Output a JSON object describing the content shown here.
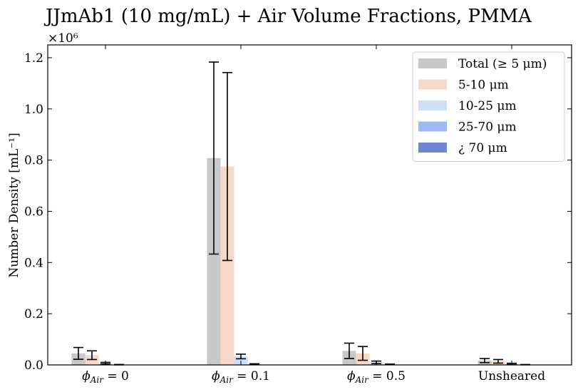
{
  "chart_data": {
    "type": "bar",
    "title": "JJmAb1 (10 mg/mL) + Air Volume Fractions, PMMA",
    "ylabel": "Number Density [mL⁻¹]",
    "y_multiplier_label": "×10⁶",
    "y_multiplier": 1000000,
    "ylim": [
      0,
      1250000
    ],
    "yticks": [
      0,
      200000,
      400000,
      600000,
      800000,
      1000000,
      1200000
    ],
    "ytick_labels": [
      "0.0",
      "0.2",
      "0.4",
      "0.6",
      "0.8",
      "1.0",
      "1.2"
    ],
    "categories": [
      "ϕAir = 0",
      "ϕAir = 0.1",
      "ϕAir = 0.5",
      "Unsheared"
    ],
    "category_labels": [
      {
        "sym": "ϕ",
        "sub": "Air",
        "rest": " = 0"
      },
      {
        "sym": "ϕ",
        "sub": "Air",
        "rest": " = 0.1"
      },
      {
        "sym": "ϕ",
        "sub": "Air",
        "rest": " = 0.5"
      },
      {
        "sym": "",
        "sub": "",
        "rest": "Unsheared"
      }
    ],
    "series": [
      {
        "name": "Total (≥ 5 μm)",
        "color": "#c8c8c8",
        "values": [
          45000,
          808000,
          55000,
          17000
        ],
        "errors": [
          23000,
          375000,
          30000,
          8000
        ]
      },
      {
        "name": "5-10 μm",
        "color": "#f6d8c8",
        "values": [
          38000,
          775000,
          45000,
          14000
        ],
        "errors": [
          17000,
          367000,
          27000,
          7000
        ]
      },
      {
        "name": "10-25 μm",
        "color": "#cfdef4",
        "values": [
          7000,
          33000,
          10000,
          4000
        ],
        "errors": [
          3000,
          9000,
          5000,
          2500
        ]
      },
      {
        "name": "25-70 μm",
        "color": "#9fb8f2",
        "values": [
          1000,
          3000,
          2000,
          1000
        ],
        "errors": [
          800,
          1500,
          1200,
          600
        ]
      },
      {
        "name": "¿ 70 μm",
        "color": "#7282d4",
        "values": [
          300,
          500,
          400,
          300
        ],
        "errors": [
          0,
          0,
          0,
          0
        ]
      }
    ],
    "legend_position": "upper right",
    "grid": false
  }
}
